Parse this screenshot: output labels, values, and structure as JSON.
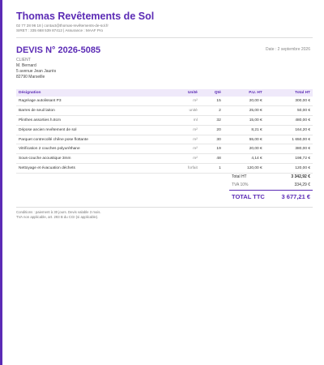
{
  "header": {
    "company": "Thomas Revêtements de Sol",
    "contact": "02 77 28 96 18  |  contact@thomas-revêtements-de-sol.fr",
    "registration": "SIRET : 335 668 539 87412  |  Assurance : MAAF Pro"
  },
  "quote": {
    "number": "DEVIS N° 2026-5085",
    "date": "Date : 2 septembre 2026"
  },
  "client": {
    "label": "CLIENT",
    "name": "M. Bernard",
    "address": "5 avenue Jean Jaurès",
    "city": "82790 Marseille"
  },
  "table": {
    "columns": [
      "Désignation",
      "Unité",
      "Qté",
      "P.U. HT",
      "Total HT"
    ],
    "rows": [
      [
        "Ragréage autolissant P3",
        "m²",
        "15",
        "20,00 €",
        "300,00 €"
      ],
      [
        "Barres de seuil laiton",
        "unité",
        "2",
        "25,00 €",
        "50,00 €"
      ],
      [
        "Plinthes assorties h.8cm",
        "ml",
        "32",
        "15,00 €",
        "480,00 €"
      ],
      [
        "Dépose ancien revêtement de sol",
        "m²",
        "20",
        "8,21 €",
        "164,20 €"
      ],
      [
        "Parquet contrecollé chêne pose flottante",
        "m²",
        "30",
        "55,00 €",
        "1 650,00 €"
      ],
      [
        "Vitrification 2 couches polyuréthane",
        "m²",
        "19",
        "20,00 €",
        "380,00 €"
      ],
      [
        "Sous-couche acoustique 3mm",
        "m²",
        "48",
        "4,14 €",
        "198,72 €"
      ],
      [
        "Nettoyage et évacuation déchets",
        "forfait",
        "1",
        "120,00 €",
        "120,00 €"
      ]
    ]
  },
  "totals": {
    "ht_label": "Total HT",
    "ht": "3 342,92 €",
    "tva_label": "TVA 10%",
    "tva": "334,29 €",
    "ttc_label": "TOTAL TTC",
    "ttc": "3 677,21 €"
  },
  "footer": [
    "Conditions : paiement à 30 jours. Devis valable 3 mois.",
    "TVA non applicable, art. 293 B du CGI (si applicable)."
  ]
}
